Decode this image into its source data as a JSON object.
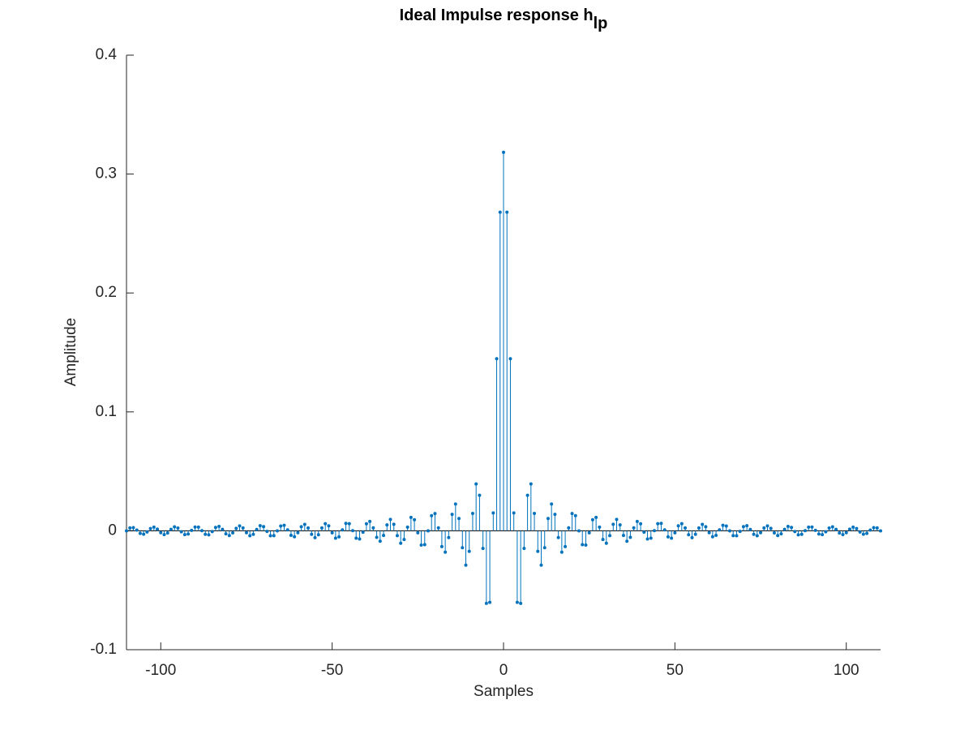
{
  "chart_data": {
    "type": "stem",
    "title": "Ideal Impulse response h",
    "title_subscript": "lp",
    "x_label": "Samples",
    "y_label": "Amplitude",
    "xlim": [
      -110,
      110
    ],
    "ylim": [
      -0.1,
      0.4
    ],
    "xticks": [
      -100,
      -50,
      0,
      50,
      100
    ],
    "yticks": [
      -0.1,
      0,
      0.1,
      0.2,
      0.3,
      0.4
    ],
    "grid": false,
    "color": "#0072bd",
    "x": [
      -110,
      -109,
      -108,
      -107,
      -106,
      -105,
      -104,
      -103,
      -102,
      -101,
      -100,
      -99,
      -98,
      -97,
      -96,
      -95,
      -94,
      -93,
      -92,
      -91,
      -90,
      -89,
      -88,
      -87,
      -86,
      -85,
      -84,
      -83,
      -82,
      -81,
      -80,
      -79,
      -78,
      -77,
      -76,
      -75,
      -74,
      -73,
      -72,
      -71,
      -70,
      -69,
      -68,
      -67,
      -66,
      -65,
      -64,
      -63,
      -62,
      -61,
      -60,
      -59,
      -58,
      -57,
      -56,
      -55,
      -54,
      -53,
      -52,
      -51,
      -50,
      -49,
      -48,
      -47,
      -46,
      -45,
      -44,
      -43,
      -42,
      -41,
      -40,
      -39,
      -38,
      -37,
      -36,
      -35,
      -34,
      -33,
      -32,
      -31,
      -30,
      -29,
      -28,
      -27,
      -26,
      -25,
      -24,
      -23,
      -22,
      -21,
      -20,
      -19,
      -18,
      -17,
      -16,
      -15,
      -14,
      -13,
      -12,
      -11,
      -10,
      -9,
      -8,
      -7,
      -6,
      -5,
      -4,
      -3,
      -2,
      -1,
      0,
      1,
      2,
      3,
      4,
      5,
      6,
      7,
      8,
      9,
      10,
      11,
      12,
      13,
      14,
      15,
      16,
      17,
      18,
      19,
      20,
      21,
      22,
      23,
      24,
      25,
      26,
      27,
      28,
      29,
      30,
      31,
      32,
      33,
      34,
      35,
      36,
      37,
      38,
      39,
      40,
      41,
      42,
      43,
      44,
      45,
      46,
      47,
      48,
      49,
      50,
      51,
      52,
      53,
      54,
      55,
      56,
      57,
      58,
      59,
      60,
      61,
      62,
      63,
      64,
      65,
      66,
      67,
      68,
      69,
      70,
      71,
      72,
      73,
      74,
      75,
      76,
      77,
      78,
      79,
      80,
      81,
      82,
      83,
      84,
      85,
      86,
      87,
      88,
      89,
      90,
      91,
      92,
      93,
      94,
      95,
      96,
      97,
      98,
      99,
      100,
      101,
      102,
      103,
      104,
      105,
      106,
      107,
      108,
      109,
      110
    ],
    "values": [
      -0.0001,
      0.0024,
      0.0027,
      0.0006,
      -0.0022,
      -0.0029,
      -0.001,
      0.0019,
      0.0031,
      0.0014,
      -0.0016,
      -0.0032,
      -0.0019,
      0.0012,
      0.0033,
      0.0023,
      -0.0008,
      -0.0032,
      -0.0027,
      0.0004,
      0.0032,
      0.0031,
      0.0001,
      -0.003,
      -0.0034,
      -0.0007,
      0.0028,
      0.0037,
      0.0012,
      -0.0025,
      -0.004,
      -0.0018,
      0.0021,
      0.0041,
      0.0024,
      -0.0016,
      -0.0042,
      -0.003,
      0.0011,
      0.0043,
      0.0035,
      -0.0005,
      -0.0042,
      -0.0041,
      -0.0001,
      0.004,
      0.0046,
      0.0008,
      -0.0038,
      -0.005,
      -0.0016,
      0.0034,
      0.0054,
      0.0024,
      -0.003,
      -0.0058,
      -0.0033,
      0.0024,
      0.006,
      0.0042,
      -0.0017,
      -0.0062,
      -0.0051,
      0.0008,
      0.0062,
      0.006,
      0.0001,
      -0.0062,
      -0.0069,
      -0.0012,
      0.0059,
      0.0079,
      0.0025,
      -0.0055,
      -0.0088,
      -0.0039,
      0.005,
      0.0096,
      0.0055,
      -0.0041,
      -0.0105,
      -0.0073,
      0.0031,
      0.0113,
      0.0093,
      -0.0017,
      -0.012,
      -0.0117,
      -0.0001,
      0.0127,
      0.0145,
      0.0025,
      -0.0133,
      -0.018,
      -0.0057,
      0.0138,
      0.0225,
      0.0103,
      -0.0142,
      -0.0289,
      -0.0173,
      0.0146,
      0.0394,
      0.0299,
      -0.0148,
      -0.061,
      -0.0602,
      0.015,
      0.1447,
      0.2679,
      0.3183,
      0.2679,
      0.1447,
      0.015,
      -0.0602,
      -0.061,
      -0.0148,
      0.0299,
      0.0394,
      0.0146,
      -0.0173,
      -0.0289,
      -0.0142,
      0.0103,
      0.0225,
      0.0138,
      -0.0057,
      -0.018,
      -0.0133,
      0.0025,
      0.0145,
      0.0127,
      -0.0001,
      -0.0117,
      -0.012,
      -0.0017,
      0.0093,
      0.0113,
      0.0031,
      -0.0073,
      -0.0105,
      -0.0041,
      0.0055,
      0.0096,
      0.005,
      -0.0039,
      -0.0088,
      -0.0055,
      0.0025,
      0.0079,
      0.0059,
      -0.0012,
      -0.0069,
      -0.0062,
      0.0001,
      0.006,
      0.0062,
      0.0008,
      -0.0051,
      -0.0062,
      -0.0017,
      0.0042,
      0.006,
      0.0024,
      -0.0033,
      -0.0058,
      -0.003,
      0.0024,
      0.0054,
      0.0034,
      -0.0016,
      -0.005,
      -0.0038,
      0.0008,
      0.0046,
      0.004,
      -0.0001,
      -0.0041,
      -0.0042,
      -0.0005,
      0.0035,
      0.0043,
      0.0011,
      -0.003,
      -0.0042,
      -0.0016,
      0.0024,
      0.0041,
      0.0021,
      -0.0018,
      -0.004,
      -0.0025,
      0.0012,
      0.0037,
      0.0028,
      -0.0007,
      -0.0034,
      -0.003,
      0.0001,
      0.0031,
      0.0032,
      0.0004,
      -0.0027,
      -0.0032,
      -0.0008,
      0.0023,
      0.0033,
      0.0012,
      -0.0019,
      -0.0032,
      -0.0016,
      0.0014,
      0.0031,
      0.0019,
      -0.001,
      -0.0029,
      -0.0022,
      0.0006,
      0.0027,
      0.0024,
      -0.0001
    ]
  }
}
